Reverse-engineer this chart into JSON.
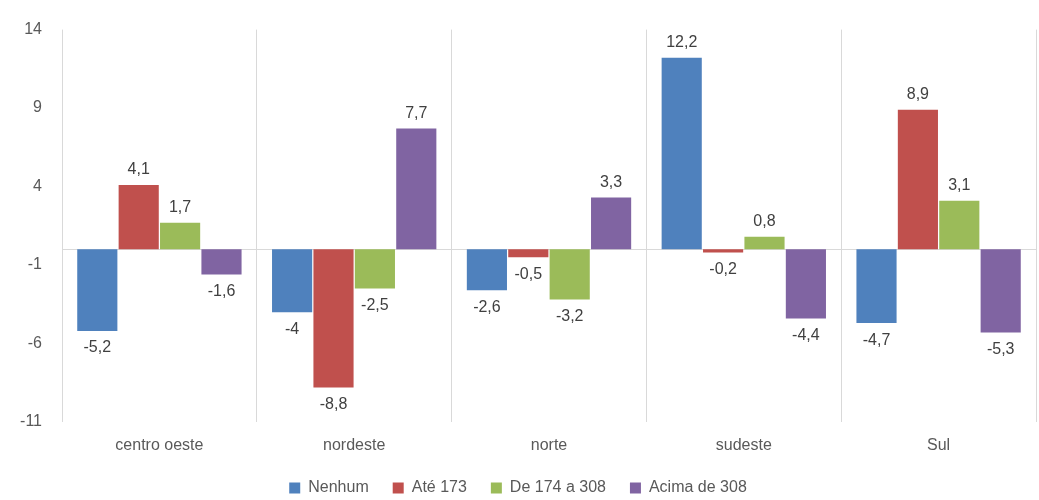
{
  "chart_data": {
    "type": "bar",
    "categories": [
      "centro oeste",
      "nordeste",
      "norte",
      "sudeste",
      "Sul"
    ],
    "series": [
      {
        "name": "Nenhum",
        "color": "#4f81bd",
        "values": [
          -5.2,
          -4,
          -2.6,
          12.2,
          -4.7
        ],
        "value_labels": [
          "-5,2",
          "-4",
          "-2,6",
          "12,2",
          "-4,7"
        ]
      },
      {
        "name": "Até 173",
        "color": "#c0504d",
        "values": [
          4.1,
          -8.8,
          -0.5,
          -0.2,
          8.9
        ],
        "value_labels": [
          "4,1",
          "-8,8",
          "-0,5",
          "-0,2",
          "8,9"
        ]
      },
      {
        "name": "De 174 a 308",
        "color": "#9bbb59",
        "values": [
          1.7,
          -2.5,
          -3.2,
          0.8,
          3.1
        ],
        "value_labels": [
          "1,7",
          "-2,5",
          "-3,2",
          "0,8",
          "3,1"
        ]
      },
      {
        "name": "Acima de 308",
        "color": "#8064a2",
        "values": [
          -1.6,
          7.7,
          3.3,
          -4.4,
          -5.3
        ],
        "value_labels": [
          "-1,6",
          "7,7",
          "3,3",
          "-4,4",
          "-5,3"
        ]
      }
    ],
    "ylim": [
      -11,
      14
    ],
    "yticks": [
      -11,
      -6,
      -1,
      4,
      9,
      14
    ],
    "grid": "x",
    "legend": "bottom"
  }
}
